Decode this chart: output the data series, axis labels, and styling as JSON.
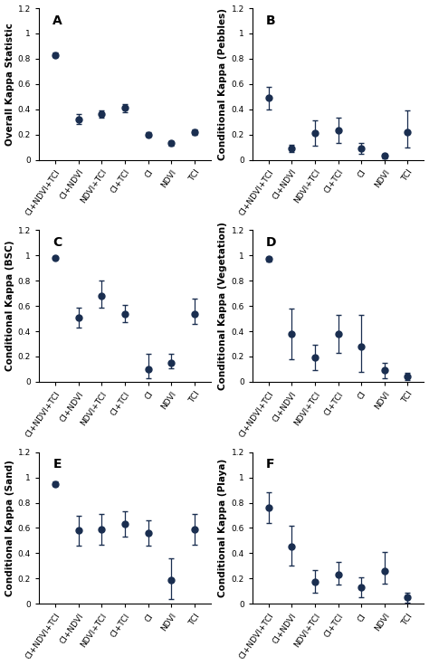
{
  "panels": [
    {
      "label": "A",
      "ylabel": "Overall Kappa Statistic",
      "ylim": [
        0,
        1.2
      ],
      "yticks": [
        0,
        0.2,
        0.4,
        0.6,
        0.8,
        1.0,
        1.2
      ],
      "values": [
        0.83,
        0.32,
        0.36,
        0.41,
        0.2,
        0.13,
        0.22
      ],
      "yerr_lo": [
        0.02,
        0.04,
        0.03,
        0.03,
        0.02,
        0.02,
        0.02
      ],
      "yerr_hi": [
        0.02,
        0.04,
        0.03,
        0.03,
        0.02,
        0.02,
        0.02
      ]
    },
    {
      "label": "B",
      "ylabel": "Conditional Kappa (Pebbles)",
      "ylim": [
        0,
        1.2
      ],
      "yticks": [
        0,
        0.2,
        0.4,
        0.6,
        0.8,
        1.0,
        1.2
      ],
      "values": [
        0.49,
        0.09,
        0.21,
        0.23,
        0.09,
        0.03,
        0.22
      ],
      "yerr_lo": [
        0.09,
        0.03,
        0.1,
        0.1,
        0.04,
        0.02,
        0.12
      ],
      "yerr_hi": [
        0.09,
        0.03,
        0.1,
        0.1,
        0.04,
        0.02,
        0.17
      ]
    },
    {
      "label": "C",
      "ylabel": "Conditional Kappa (BSC)",
      "ylim": [
        0,
        1.2
      ],
      "yticks": [
        0,
        0.2,
        0.4,
        0.6,
        0.8,
        1.0,
        1.2
      ],
      "values": [
        0.98,
        0.51,
        0.68,
        0.54,
        0.1,
        0.15,
        0.54
      ],
      "yerr_lo": [
        0.01,
        0.08,
        0.09,
        0.07,
        0.07,
        0.04,
        0.08
      ],
      "yerr_hi": [
        0.01,
        0.08,
        0.12,
        0.07,
        0.12,
        0.07,
        0.12
      ]
    },
    {
      "label": "D",
      "ylabel": "Conditional Kappa (Vegetation)",
      "ylim": [
        0,
        1.2
      ],
      "yticks": [
        0,
        0.2,
        0.4,
        0.6,
        0.8,
        1.0,
        1.2
      ],
      "values": [
        0.97,
        0.38,
        0.19,
        0.38,
        0.28,
        0.09,
        0.04
      ],
      "yerr_lo": [
        0.02,
        0.2,
        0.1,
        0.15,
        0.2,
        0.06,
        0.03
      ],
      "yerr_hi": [
        0.02,
        0.2,
        0.1,
        0.15,
        0.25,
        0.06,
        0.03
      ]
    },
    {
      "label": "E",
      "ylabel": "Conditional Kappa (Sand)",
      "ylim": [
        0,
        1.2
      ],
      "yticks": [
        0,
        0.2,
        0.4,
        0.6,
        0.8,
        1.0,
        1.2
      ],
      "values": [
        0.95,
        0.58,
        0.59,
        0.63,
        0.56,
        0.19,
        0.59
      ],
      "yerr_lo": [
        0.02,
        0.12,
        0.12,
        0.1,
        0.1,
        0.15,
        0.12
      ],
      "yerr_hi": [
        0.02,
        0.12,
        0.12,
        0.1,
        0.1,
        0.17,
        0.12
      ]
    },
    {
      "label": "F",
      "ylabel": "Conditional Kappa (Playa)",
      "ylim": [
        0,
        1.2
      ],
      "yticks": [
        0,
        0.2,
        0.4,
        0.6,
        0.8,
        1.0,
        1.2
      ],
      "values": [
        0.76,
        0.45,
        0.17,
        0.23,
        0.13,
        0.26,
        0.05
      ],
      "yerr_lo": [
        0.12,
        0.15,
        0.08,
        0.08,
        0.08,
        0.1,
        0.04
      ],
      "yerr_hi": [
        0.12,
        0.17,
        0.1,
        0.1,
        0.08,
        0.15,
        0.04
      ]
    }
  ],
  "categories": [
    "CI+NDVI+TCI",
    "CI+NDVI",
    "NDVI+TCI",
    "CI+TCI",
    "CI",
    "NDVI",
    "TCI"
  ],
  "marker_color": "#1a2e50",
  "marker_size": 5,
  "line_color": "#1a2e50",
  "capsize": 2,
  "elinewidth": 0.9,
  "tick_labelsize": 6.5,
  "ylabel_fontsize": 7.5,
  "label_fontsize": 10
}
